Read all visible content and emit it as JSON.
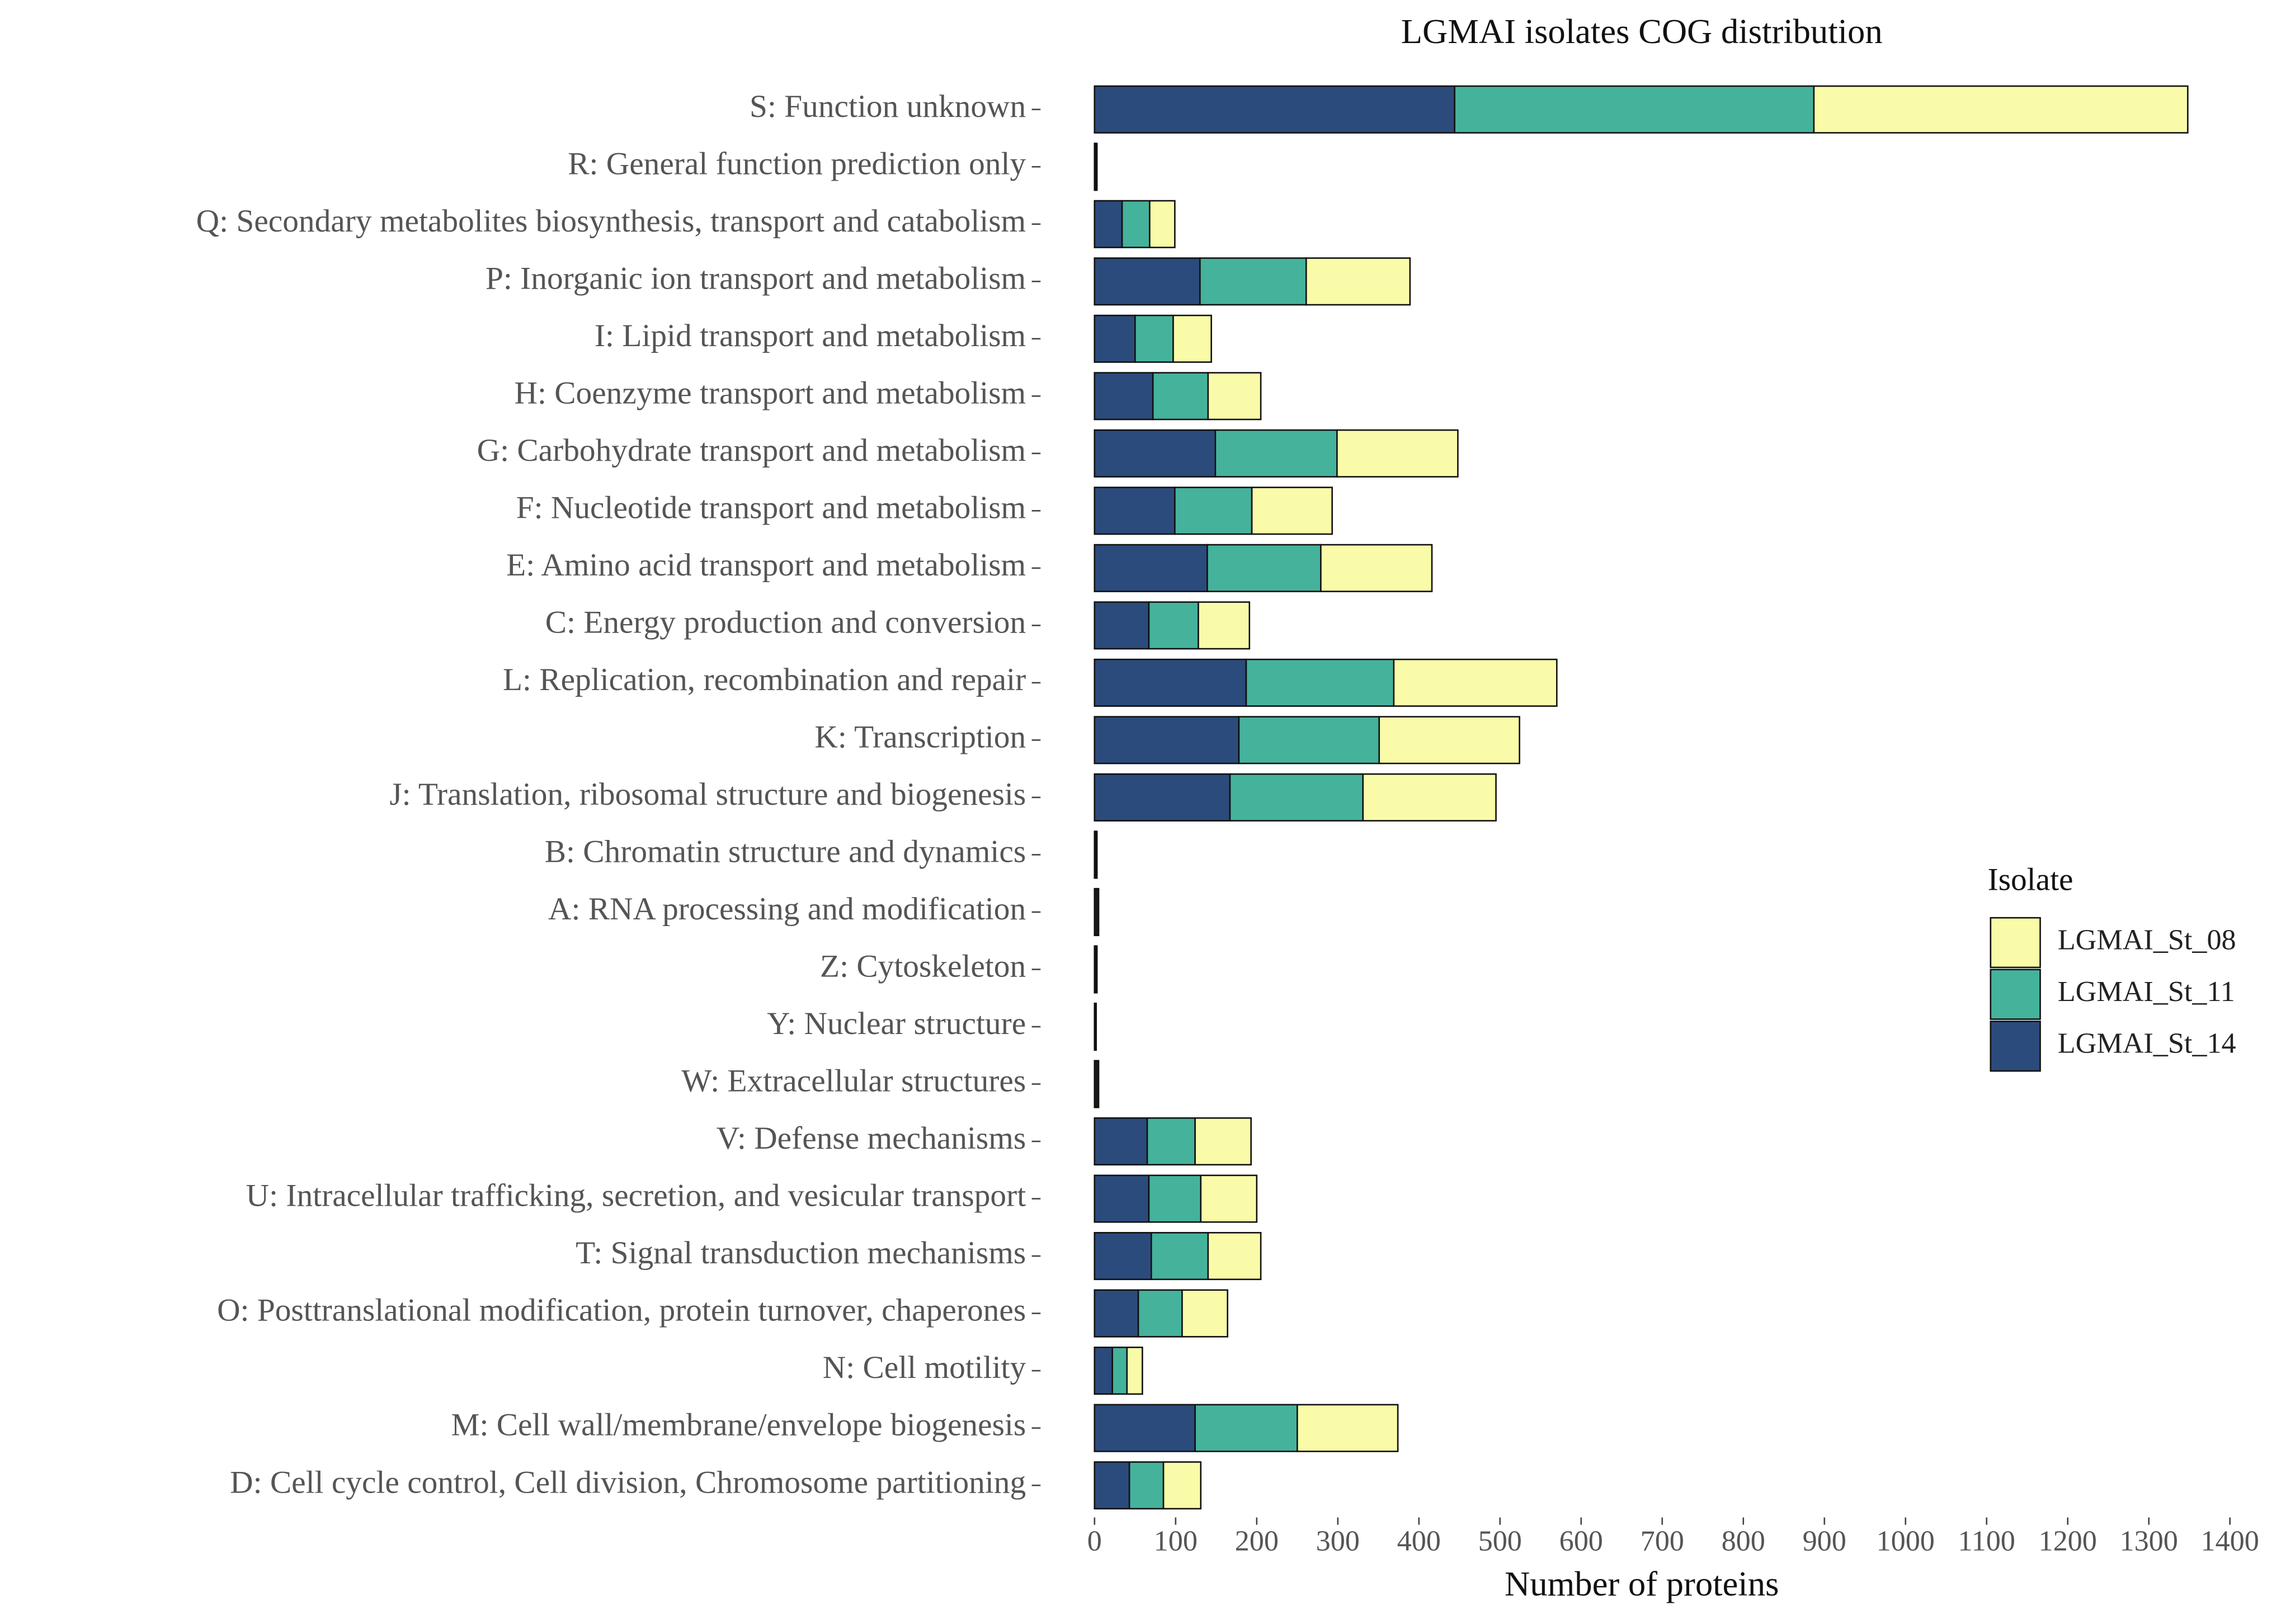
{
  "chart_data": {
    "type": "stacked_bar_horizontal",
    "title": "LGMAI isolates COG distribution",
    "x_label": "Number of proteins",
    "legend_title": "Isolate",
    "legend_position": "right",
    "categories": [
      "S: Function unknown",
      "R: General function prediction only",
      "Q: Secondary metabolites biosynthesis, transport and catabolism",
      "P: Inorganic ion transport and metabolism",
      "I: Lipid transport and metabolism",
      "H: Coenzyme transport and metabolism",
      "G: Carbohydrate transport and metabolism",
      "F: Nucleotide transport and metabolism",
      "E: Amino acid transport and metabolism",
      "C: Energy production and conversion",
      "L: Replication, recombination and repair",
      "K: Transcription",
      "J: Translation, ribosomal structure and biogenesis",
      "B: Chromatin structure and dynamics",
      "A: RNA processing and modification",
      "Z: Cytoskeleton",
      "Y: Nuclear structure",
      "W: Extracellular structures",
      "V: Defense mechanisms",
      "U: Intracellular trafficking, secretion, and vesicular transport",
      "T: Signal transduction mechanisms",
      "O: Posttranslational modification, protein turnover, chaperones",
      "N: Cell motility",
      "M: Cell wall/membrane/envelope biogenesis",
      "D: Cell cycle control, Cell division, Chromosome partitioning"
    ],
    "series": [
      {
        "name": "LGMAI_St_14",
        "color": "#2b4b7c",
        "values": [
          444,
          1,
          34,
          130,
          50,
          72,
          149,
          99,
          139,
          67,
          187,
          178,
          167,
          1,
          2,
          1,
          1,
          2,
          65,
          67,
          70,
          54,
          22,
          124,
          43
        ]
      },
      {
        "name": "LGMAI_St_11",
        "color": "#45b29c",
        "values": [
          443,
          1,
          34,
          131,
          47,
          68,
          150,
          95,
          140,
          61,
          182,
          173,
          164,
          1,
          2,
          1,
          1,
          2,
          59,
          64,
          70,
          54,
          18,
          126,
          42
        ]
      },
      {
        "name": "LGMAI_St_08",
        "color": "#f9fba8",
        "values": [
          461,
          1,
          31,
          128,
          47,
          65,
          149,
          99,
          137,
          63,
          201,
          173,
          164,
          1,
          1,
          1,
          0,
          1,
          69,
          69,
          65,
          56,
          19,
          124,
          46
        ]
      }
    ],
    "xlim": [
      0,
      1400
    ],
    "xticks": [
      0,
      100,
      200,
      300,
      400,
      500,
      600,
      700,
      800,
      900,
      1000,
      1100,
      1200,
      1300,
      1400
    ],
    "grid": false
  }
}
